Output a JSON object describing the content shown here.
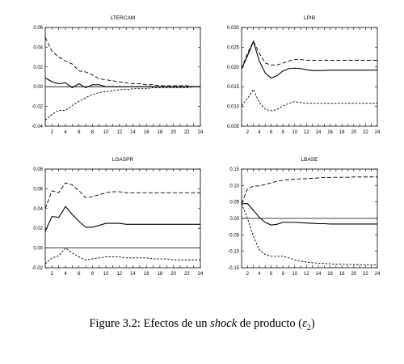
{
  "caption": {
    "prefix": "Figure 3.2: Efectos de un ",
    "italic": "shock",
    "suffix": " de producto (",
    "symbol": "ε",
    "subscript": "2",
    "close": ")"
  },
  "chart_data": [
    {
      "type": "line",
      "title": "LTERCAM",
      "x_range": [
        1,
        24
      ],
      "x_ticks": [
        2,
        4,
        6,
        8,
        10,
        12,
        14,
        16,
        18,
        20,
        22,
        24
      ],
      "ylim": [
        -0.04,
        0.06
      ],
      "y_ticks": [
        "0.06",
        "0.04",
        "0.02",
        "0.00",
        "-0.02",
        "-0.04"
      ],
      "y_tick_values": [
        0.06,
        0.04,
        0.02,
        0.0,
        -0.02,
        -0.04
      ],
      "zero_line": true,
      "x": [
        1,
        2,
        3,
        4,
        5,
        6,
        7,
        8,
        9,
        10,
        11,
        12,
        13,
        14,
        15,
        16,
        17,
        18,
        19,
        20,
        21,
        22,
        23,
        24
      ],
      "series": [
        {
          "style": "solid",
          "values": [
            0.009,
            0.005,
            0.003,
            0.004,
            -0.001,
            0.003,
            -0.001,
            0.002,
            0.002,
            0.0,
            0.0,
            0.0,
            0.0,
            0.0,
            0.0,
            0.0,
            0.0,
            0.0,
            0.0,
            0.0,
            0.0,
            0.0,
            0.0,
            0.0
          ]
        },
        {
          "style": "dashed",
          "values": [
            0.05,
            0.036,
            0.03,
            0.026,
            0.023,
            0.016,
            0.015,
            0.012,
            0.008,
            0.007,
            0.006,
            0.005,
            0.004,
            0.003,
            0.003,
            0.002,
            0.002,
            0.001,
            0.001,
            0.001,
            0.001,
            0.001,
            0.0,
            0.0
          ]
        },
        {
          "style": "dotted",
          "values": [
            -0.034,
            -0.028,
            -0.024,
            -0.024,
            -0.019,
            -0.015,
            -0.011,
            -0.008,
            -0.006,
            -0.005,
            -0.004,
            -0.003,
            -0.003,
            -0.002,
            -0.002,
            -0.002,
            -0.001,
            -0.001,
            -0.001,
            -0.001,
            -0.001,
            -0.001,
            0.0,
            0.0
          ]
        }
      ]
    },
    {
      "type": "line",
      "title": "LPIB",
      "x_range": [
        1,
        24
      ],
      "x_ticks": [
        2,
        4,
        6,
        8,
        10,
        12,
        14,
        16,
        18,
        20,
        22,
        24
      ],
      "ylim": [
        0.005,
        0.03
      ],
      "y_ticks": [
        "0.030",
        "0.025",
        "0.020",
        "0.015",
        "0.010",
        "0.005"
      ],
      "y_tick_values": [
        0.03,
        0.025,
        0.02,
        0.015,
        0.01,
        0.005
      ],
      "zero_line": false,
      "x": [
        1,
        2,
        3,
        4,
        5,
        6,
        7,
        8,
        9,
        10,
        11,
        12,
        13,
        14,
        15,
        16,
        17,
        18,
        19,
        20,
        21,
        22,
        23,
        24
      ],
      "series": [
        {
          "style": "solid",
          "values": [
            0.0195,
            0.0228,
            0.0265,
            0.0215,
            0.0185,
            0.0172,
            0.0178,
            0.019,
            0.0196,
            0.0197,
            0.0196,
            0.0193,
            0.0191,
            0.0191,
            0.0191,
            0.0192,
            0.0192,
            0.0192,
            0.0192,
            0.0192,
            0.0192,
            0.0192,
            0.0192,
            0.0192
          ]
        },
        {
          "style": "dashed",
          "values": [
            0.0195,
            0.0235,
            0.0265,
            0.0235,
            0.021,
            0.0205,
            0.0205,
            0.021,
            0.0215,
            0.0219,
            0.0219,
            0.0217,
            0.0217,
            0.0217,
            0.0217,
            0.0217,
            0.0217,
            0.0217,
            0.0217,
            0.0217,
            0.0217,
            0.0217,
            0.0217,
            0.0217
          ]
        },
        {
          "style": "dotted",
          "values": [
            0.0102,
            0.012,
            0.0143,
            0.011,
            0.0093,
            0.0089,
            0.0092,
            0.0101,
            0.0108,
            0.0112,
            0.011,
            0.0108,
            0.0108,
            0.0108,
            0.0108,
            0.0108,
            0.0108,
            0.0108,
            0.0108,
            0.0108,
            0.0108,
            0.0108,
            0.0108,
            0.0108
          ]
        }
      ]
    },
    {
      "type": "line",
      "title": "LGASPR",
      "x_range": [
        1,
        24
      ],
      "x_ticks": [
        2,
        4,
        6,
        8,
        10,
        12,
        14,
        16,
        18,
        20,
        22,
        24
      ],
      "ylim": [
        -0.02,
        0.08
      ],
      "y_ticks": [
        "0.08",
        "0.06",
        "0.04",
        "0.02",
        "0.00",
        "-0.02"
      ],
      "y_tick_values": [
        0.08,
        0.06,
        0.04,
        0.02,
        0.0,
        -0.02
      ],
      "zero_line": true,
      "x": [
        1,
        2,
        3,
        4,
        5,
        6,
        7,
        8,
        9,
        10,
        11,
        12,
        13,
        14,
        15,
        16,
        17,
        18,
        19,
        20,
        21,
        22,
        23,
        24
      ],
      "series": [
        {
          "style": "solid",
          "values": [
            0.017,
            0.032,
            0.031,
            0.042,
            0.034,
            0.027,
            0.021,
            0.021,
            0.023,
            0.025,
            0.025,
            0.025,
            0.024,
            0.024,
            0.024,
            0.024,
            0.024,
            0.024,
            0.024,
            0.024,
            0.024,
            0.024,
            0.024,
            0.024
          ]
        },
        {
          "style": "dashed",
          "values": [
            0.04,
            0.058,
            0.056,
            0.066,
            0.064,
            0.058,
            0.051,
            0.052,
            0.054,
            0.056,
            0.057,
            0.057,
            0.056,
            0.056,
            0.056,
            0.056,
            0.056,
            0.056,
            0.056,
            0.056,
            0.056,
            0.056,
            0.056,
            0.056
          ]
        },
        {
          "style": "dotted",
          "values": [
            -0.016,
            -0.01,
            -0.008,
            0.0,
            -0.005,
            -0.009,
            -0.012,
            -0.011,
            -0.01,
            -0.009,
            -0.009,
            -0.009,
            -0.01,
            -0.01,
            -0.01,
            -0.01,
            -0.011,
            -0.011,
            -0.011,
            -0.012,
            -0.012,
            -0.012,
            -0.012,
            -0.012
          ]
        }
      ]
    },
    {
      "type": "line",
      "title": "LBASE",
      "x_range": [
        1,
        24
      ],
      "x_ticks": [
        2,
        4,
        6,
        8,
        10,
        12,
        14,
        16,
        18,
        20,
        22,
        24
      ],
      "ylim": [
        -0.15,
        0.15
      ],
      "y_ticks": [
        "0.15",
        "0.10",
        "0.05",
        "0.00",
        "-0.05",
        "-0.10",
        "-0.15"
      ],
      "y_tick_values": [
        0.15,
        0.1,
        0.05,
        0.0,
        -0.05,
        -0.1,
        -0.15
      ],
      "zero_line": true,
      "x": [
        1,
        2,
        3,
        4,
        5,
        6,
        7,
        8,
        9,
        10,
        11,
        12,
        13,
        14,
        15,
        16,
        17,
        18,
        19,
        20,
        21,
        22,
        23,
        24
      ],
      "series": [
        {
          "style": "solid",
          "values": [
            0.045,
            0.045,
            0.025,
            0.003,
            -0.012,
            -0.02,
            -0.018,
            -0.012,
            -0.012,
            -0.012,
            -0.013,
            -0.014,
            -0.015,
            -0.016,
            -0.016,
            -0.017,
            -0.017,
            -0.017,
            -0.017,
            -0.017,
            -0.017,
            -0.017,
            -0.017,
            -0.017
          ]
        },
        {
          "style": "dashed",
          "values": [
            0.045,
            0.09,
            0.098,
            0.099,
            0.103,
            0.108,
            0.113,
            0.116,
            0.118,
            0.119,
            0.12,
            0.121,
            0.122,
            0.123,
            0.124,
            0.124,
            0.125,
            0.125,
            0.125,
            0.126,
            0.126,
            0.126,
            0.126,
            0.126
          ]
        },
        {
          "style": "dotted",
          "values": [
            0.045,
            0.0,
            -0.055,
            -0.095,
            -0.11,
            -0.115,
            -0.115,
            -0.115,
            -0.12,
            -0.126,
            -0.13,
            -0.133,
            -0.135,
            -0.136,
            -0.137,
            -0.138,
            -0.139,
            -0.139,
            -0.14,
            -0.14,
            -0.141,
            -0.141,
            -0.141,
            -0.142
          ]
        }
      ]
    }
  ]
}
